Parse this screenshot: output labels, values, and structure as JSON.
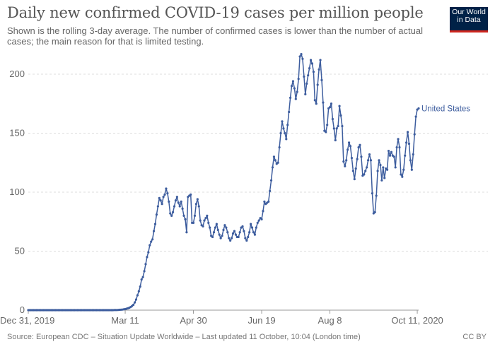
{
  "header": {
    "title": "Daily new confirmed COVID-19 cases per million people",
    "subtitle": "Shown is the rolling 3-day average. The number of confirmed cases is lower than the number of actual cases; the main reason for that is limited testing.",
    "logo_text": "Our World in Data"
  },
  "footer": {
    "source": "Source: European CDC – Situation Update Worldwide – Last updated 11 October, 10:04 (London time)",
    "license": "CC BY"
  },
  "colors": {
    "series": "#3d5d9e",
    "grid": "#dddddd",
    "axis": "#999999"
  },
  "chart_data": {
    "type": "line",
    "title": "Daily new confirmed COVID-19 cases per million people",
    "xlabel": "",
    "ylabel": "",
    "ylim": [
      0,
      200
    ],
    "yticks": [
      "0",
      "50",
      "100",
      "150",
      "200"
    ],
    "xticks": [
      {
        "label": "Dec 31, 2019",
        "day": 0
      },
      {
        "label": "Mar 11",
        "day": 71
      },
      {
        "label": "Apr 30",
        "day": 121
      },
      {
        "label": "Jun 19",
        "day": 171
      },
      {
        "label": "Aug 8",
        "day": 221
      },
      {
        "label": "Oct 11, 2020",
        "day": 285
      }
    ],
    "grid": true,
    "x_start_date": "2019-12-31",
    "x_end_date": "2020-10-11",
    "series": [
      {
        "name": "United States",
        "values": [
          0,
          0,
          0,
          0,
          0,
          0,
          0,
          0,
          0,
          0,
          0,
          0,
          0,
          0,
          0,
          0,
          0,
          0,
          0,
          0,
          0,
          0,
          0,
          0,
          0,
          0,
          0,
          0,
          0,
          0,
          0,
          0,
          0,
          0,
          0,
          0,
          0,
          0,
          0,
          0,
          0,
          0,
          0,
          0,
          0,
          0,
          0,
          0,
          0,
          0,
          0,
          0,
          0,
          0,
          0,
          0,
          0,
          0,
          0,
          0,
          0,
          0,
          0,
          0.1,
          0.1,
          0.1,
          0.2,
          0.3,
          0.4,
          0.5,
          0.7,
          0.9,
          1.2,
          1.6,
          2.0,
          2.6,
          3.5,
          4.5,
          6.5,
          9,
          12.6,
          16,
          20,
          26,
          28,
          33,
          39,
          45,
          49,
          55,
          58,
          60,
          67,
          73,
          81,
          88,
          95,
          93,
          90,
          96,
          98,
          103,
          99,
          92,
          82,
          80,
          83,
          88,
          93,
          96,
          91,
          88,
          92,
          86,
          80,
          77,
          66,
          96,
          97,
          98,
          74,
          74,
          80,
          90,
          94,
          88,
          76,
          72,
          71,
          76,
          78,
          80,
          74,
          70,
          63,
          62,
          66,
          70,
          73,
          68,
          64,
          61,
          63,
          68,
          72,
          70,
          66,
          61,
          59,
          61,
          65,
          67,
          64,
          62,
          62,
          66,
          70,
          71,
          67,
          61,
          59,
          62,
          66,
          73,
          70,
          66,
          64,
          70,
          74,
          76,
          78,
          77,
          84,
          92,
          90,
          91,
          92,
          101,
          110,
          121,
          130,
          127,
          124,
          125,
          138,
          150,
          160,
          154,
          150,
          145,
          157,
          168,
          180,
          190,
          194,
          188,
          179,
          185,
          196,
          215,
          217,
          213,
          198,
          183,
          192,
          199,
          205,
          212,
          209,
          202,
          178,
          175,
          191,
          204,
          212,
          195,
          176,
          152,
          151,
          157,
          171,
          172,
          175,
          162,
          154,
          144,
          154,
          156,
          173,
          165,
          156,
          126,
          122,
          127,
          136,
          142,
          139,
          129,
          118,
          111,
          120,
          128,
          138,
          140,
          130,
          114,
          115,
          118,
          121,
          127,
          132,
          127,
          99,
          82,
          83,
          97,
          118,
          127,
          123,
          110,
          121,
          112,
          120,
          119,
          135,
          131,
          134,
          131,
          130,
          121,
          138,
          145,
          138,
          115,
          113,
          119,
          131,
          142,
          151,
          141,
          127,
          119,
          132,
          149,
          164,
          170,
          171
        ]
      }
    ]
  }
}
